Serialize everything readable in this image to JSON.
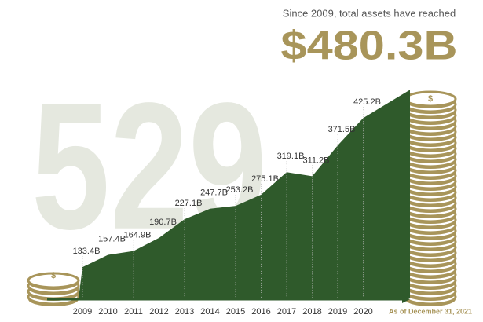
{
  "chart_data": {
    "type": "area",
    "subtitle": "Since 2009, total assets have reached",
    "watermark": "529",
    "categories": [
      "2009",
      "2010",
      "2011",
      "2012",
      "2013",
      "2014",
      "2015",
      "2016",
      "2017",
      "2018",
      "2019",
      "2020",
      "As of December 31, 2021"
    ],
    "values": [
      133.4,
      157.4,
      164.9,
      190.7,
      227.1,
      247.7,
      253.2,
      275.1,
      319.1,
      311.2,
      371.5,
      425.2,
      480.3
    ],
    "value_labels": [
      "133.4B",
      "157.4B",
      "164.9B",
      "190.7B",
      "227.1B",
      "247.7B",
      "253.2B",
      "275.1B",
      "319.1B",
      "311.2B",
      "371.5B",
      "425.2B",
      "$480.3B"
    ],
    "color": "#2f5a2b",
    "accent_color": "#a8955a"
  }
}
